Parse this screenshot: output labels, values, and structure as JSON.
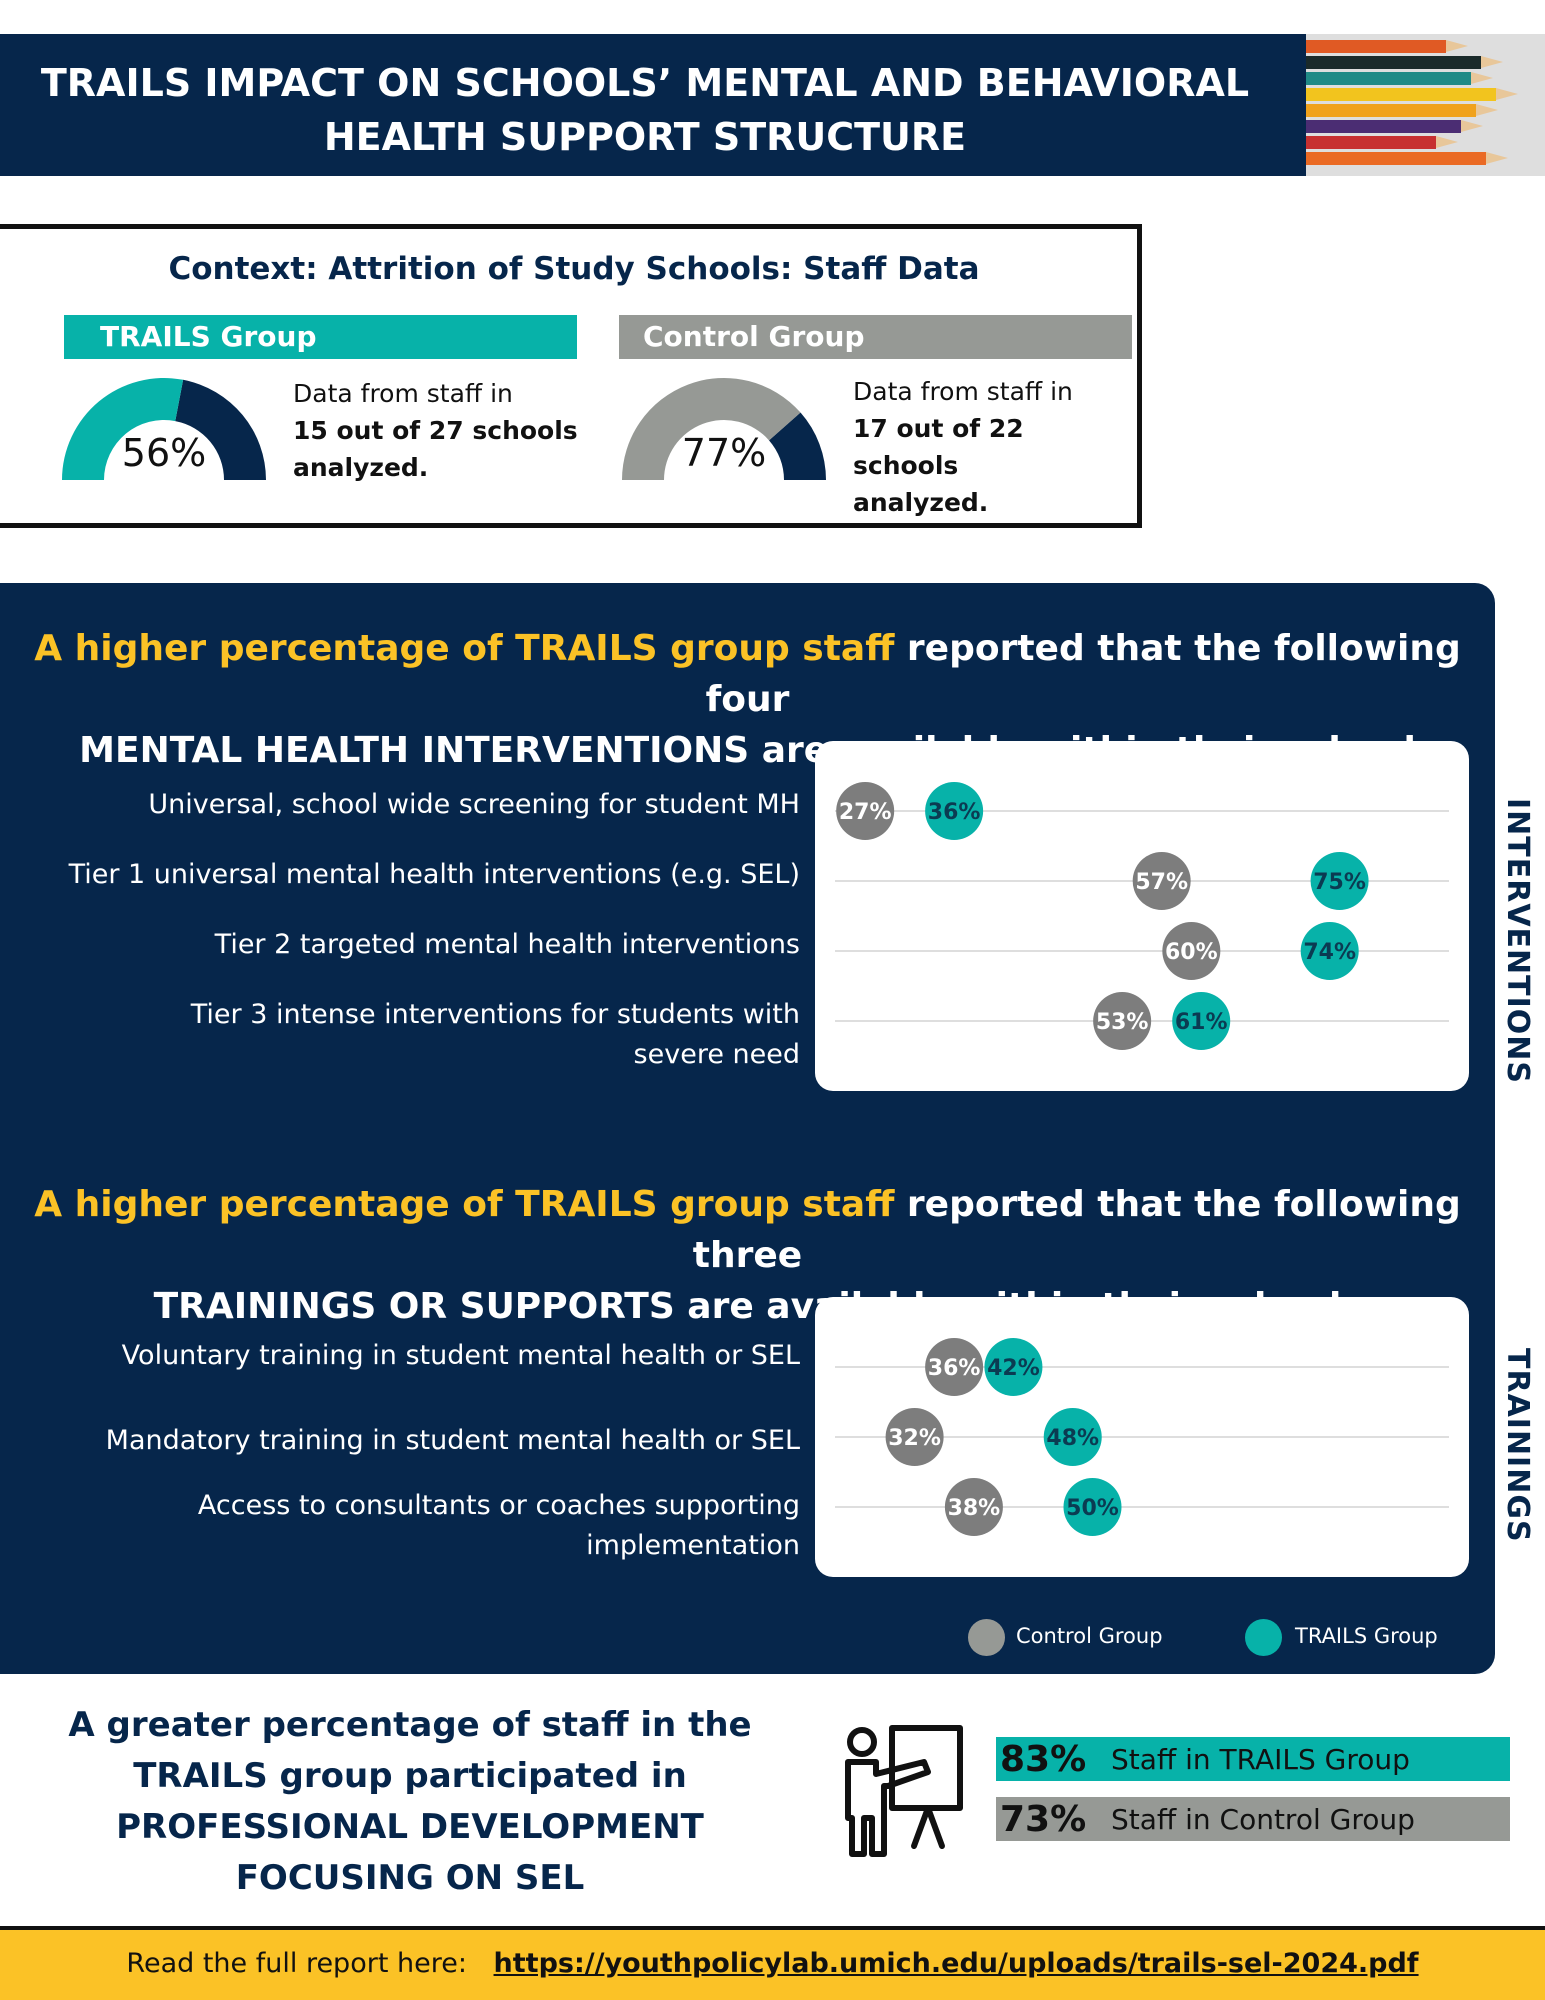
{
  "header": {
    "title": "TRAILS IMPACT ON SCHOOLS’ MENTAL AND BEHAVIORAL\nHEALTH SUPPORT STRUCTURE"
  },
  "context": {
    "title": "Context: Attrition of Study Schools: Staff Data",
    "trails": {
      "label": "TRAILS Group",
      "percent_text": "56%",
      "percent": 56,
      "note_line1": "Data from staff in",
      "note_bold1": "15 out of 27 schools",
      "note_bold2": "analyzed."
    },
    "control": {
      "label": "Control Group",
      "percent_text": "77%",
      "percent": 77,
      "note_line1": "Data from staff in",
      "note_bold1": "17 out of 22 schools",
      "note_bold2": "analyzed."
    }
  },
  "interventions": {
    "heading_highlight": "A higher percentage of TRAILS group staff",
    "heading_rest1": " reported that the following four",
    "heading_line2": "MENTAL HEALTH INTERVENTIONS are available within their school",
    "side_label": "INTERVENTIONS"
  },
  "trainings": {
    "heading_highlight": "A higher percentage of TRAILS group staff",
    "heading_rest1": " reported that the following three",
    "heading_line2": "TRAININGS OR SUPPORTS are available within their school",
    "side_label": "TRAININGS"
  },
  "legend": {
    "control": "Control Group",
    "trails": "TRAILS Group"
  },
  "chart_data": [
    {
      "type": "scatter",
      "categories": [
        "Universal, school wide screening for student MH",
        "Tier 1 universal mental health interventions (e.g. SEL)",
        "Tier 2 targeted mental health interventions",
        "Tier 3 intense interventions for students with severe need"
      ],
      "series": [
        {
          "name": "Control Group",
          "values": [
            27,
            57,
            60,
            53
          ]
        },
        {
          "name": "TRAILS Group",
          "values": [
            36,
            75,
            74,
            61
          ]
        }
      ],
      "xlim": [
        20,
        80
      ],
      "grid": true
    },
    {
      "type": "scatter",
      "categories": [
        "Voluntary training in student mental health or SEL",
        "Mandatory training in student mental health or SEL",
        "Access to consultants or coaches supporting implementation"
      ],
      "series": [
        {
          "name": "Control Group",
          "values": [
            36,
            32,
            38
          ]
        },
        {
          "name": "TRAILS Group",
          "values": [
            42,
            48,
            50
          ]
        }
      ],
      "xlim": [
        20,
        80
      ],
      "grid": true
    }
  ],
  "labels": {
    "int_rows": [
      [
        "Universal, school wide screening for student MH"
      ],
      [
        "Tier 1 universal mental health interventions (e.g. SEL)"
      ],
      [
        "Tier 2 targeted mental health interventions"
      ],
      [
        "Tier 3 intense interventions for students with",
        "severe need"
      ]
    ],
    "train_rows": [
      [
        "Voluntary training in student mental health or SEL"
      ],
      [
        "Mandatory training in student mental health or SEL"
      ],
      [
        "Access to consultants or coaches supporting",
        "implementation"
      ]
    ]
  },
  "pd": {
    "text": "A greater percentage of staff in the\nTRAILS group participated in\nPROFESSIONAL DEVELOPMENT\nFOCUSING ON SEL",
    "trails_pct": "83%",
    "trails_label": "Staff in TRAILS Group",
    "control_pct": "73%",
    "control_label": "Staff in Control Group"
  },
  "footer": {
    "text": "Read the full report here:",
    "link": "https://youthpolicylab.umich.edu/uploads/trails-sel-2024.pdf"
  },
  "colors": {
    "navy": "#06264b",
    "teal": "#07b2a9",
    "gray": "#969995",
    "dot_gray": "#7d7d7d",
    "yellow": "#fbc226"
  }
}
